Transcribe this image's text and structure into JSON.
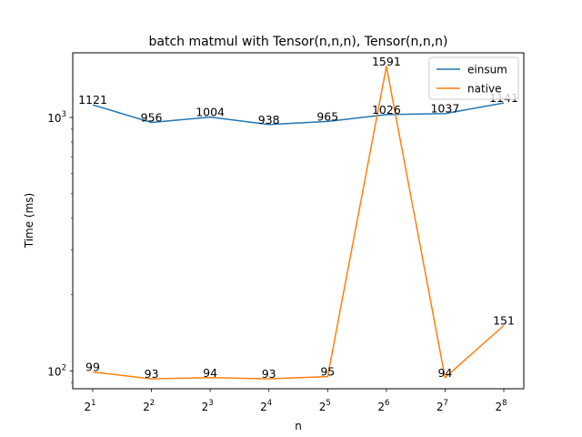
{
  "chart_data": {
    "type": "line",
    "title": "batch matmul with Tensor(n,n,n), Tensor(n,n,n)",
    "xlabel": "n",
    "ylabel": "Time (ms)",
    "yscale": "log",
    "ylim": [
      85,
      1800
    ],
    "grid": false,
    "legend_position": "top-right",
    "x": [
      2,
      4,
      8,
      16,
      32,
      64,
      128,
      256
    ],
    "x_tick_labels": [
      {
        "base": "2",
        "exp": "1"
      },
      {
        "base": "2",
        "exp": "2"
      },
      {
        "base": "2",
        "exp": "3"
      },
      {
        "base": "2",
        "exp": "4"
      },
      {
        "base": "2",
        "exp": "5"
      },
      {
        "base": "2",
        "exp": "6"
      },
      {
        "base": "2",
        "exp": "7"
      },
      {
        "base": "2",
        "exp": "8"
      }
    ],
    "y_ticks": [
      {
        "value": 100,
        "base": "10",
        "exp": "2"
      },
      {
        "value": 1000,
        "base": "10",
        "exp": "3"
      }
    ],
    "series": [
      {
        "name": "einsum",
        "color": "#1f77b4",
        "values": [
          1121,
          956,
          1004,
          938,
          965,
          1026,
          1037,
          1141
        ],
        "labels": [
          "1121",
          "956",
          "1004",
          "938",
          "965",
          "1026",
          "1037",
          "1141"
        ]
      },
      {
        "name": "native",
        "color": "#ff7f0e",
        "values": [
          99,
          93,
          94,
          93,
          95,
          1591,
          94,
          151
        ],
        "labels": [
          "99",
          "93",
          "94",
          "93",
          "95",
          "1591",
          "94",
          "151"
        ]
      }
    ]
  }
}
